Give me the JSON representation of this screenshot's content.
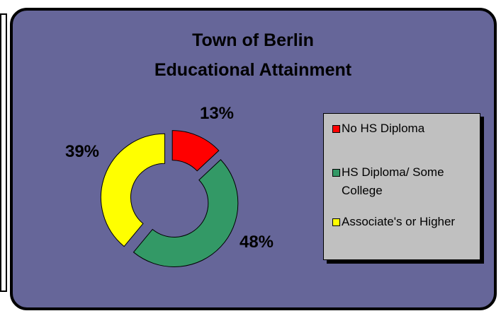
{
  "chart_data": {
    "type": "doughnut",
    "title": "Town of Berlin",
    "subtitle": "Educational Attainment",
    "series": [
      {
        "name": "No HS Diploma",
        "color": "#ff0000"
      },
      {
        "name": "HS Diploma/ Some College",
        "color": "#339966"
      },
      {
        "name": "Associate's or Higher",
        "color": "#ffff00"
      }
    ],
    "values": [
      13,
      48,
      39
    ],
    "value_labels": [
      "13%",
      "48%",
      "39%"
    ],
    "background": "#666699"
  }
}
